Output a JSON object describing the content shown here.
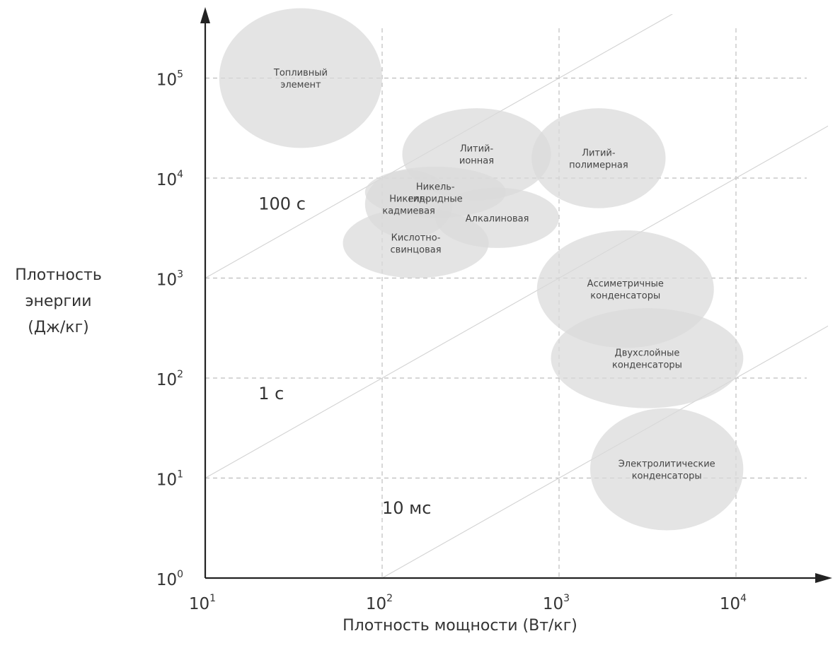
{
  "chart_data": {
    "type": "scatter",
    "title": "",
    "xlabel": "Плотность мощности (Вт/кг)",
    "ylabel_lines": [
      "Плотность",
      "энергии",
      "(Дж/кг)"
    ],
    "x_scale": "log",
    "y_scale": "log",
    "xlim": [
      10,
      100000
    ],
    "ylim": [
      1,
      1000000
    ],
    "x_ticks": [
      {
        "value": 10,
        "base": "10",
        "exp": "1"
      },
      {
        "value": 100,
        "base": "10",
        "exp": "2"
      },
      {
        "value": 1000,
        "base": "10",
        "exp": "3"
      },
      {
        "value": 10000,
        "base": "10",
        "exp": "4"
      }
    ],
    "y_ticks": [
      {
        "value": 1,
        "base": "10",
        "exp": "0"
      },
      {
        "value": 10,
        "base": "10",
        "exp": "1"
      },
      {
        "value": 100,
        "base": "10",
        "exp": "2"
      },
      {
        "value": 1000,
        "base": "10",
        "exp": "3"
      },
      {
        "value": 10000,
        "base": "10",
        "exp": "4"
      },
      {
        "value": 100000,
        "base": "10",
        "exp": "5"
      }
    ],
    "grid": true,
    "regions": [
      {
        "name": "fuel-cell",
        "label_lines": [
          "Топливный",
          "элемент"
        ],
        "x_range": [
          12,
          100
        ],
        "y_range": [
          20000,
          500000
        ]
      },
      {
        "name": "lithium-ion",
        "label_lines": [
          "Литий-",
          "ионная"
        ],
        "x_range": [
          130,
          900
        ],
        "y_range": [
          6000,
          50000
        ]
      },
      {
        "name": "lithium-polymer",
        "label_lines": [
          "Литий-",
          "полимерная"
        ],
        "x_range": [
          700,
          4000
        ],
        "y_range": [
          5000,
          50000
        ]
      },
      {
        "name": "nickel-metal-hydride",
        "label_lines": [
          "Никель-",
          "гидридные"
        ],
        "x_range": [
          80,
          500
        ],
        "y_range": [
          4000,
          13000
        ]
      },
      {
        "name": "nickel-cadmium",
        "label_lines": [
          "Никель-",
          "кадмиевая"
        ],
        "x_range": [
          80,
          250
        ],
        "y_range": [
          2500,
          12000
        ]
      },
      {
        "name": "alkaline",
        "label_lines": [
          "Алкалиновая"
        ],
        "x_range": [
          200,
          1000
        ],
        "y_range": [
          2000,
          8000
        ]
      },
      {
        "name": "lead-acid",
        "label_lines": [
          "Кислотно-",
          "свинцовая"
        ],
        "x_range": [
          60,
          400
        ],
        "y_range": [
          1000,
          5000
        ]
      },
      {
        "name": "asymmetric-capacitors",
        "label_lines": [
          "Ассиметричные",
          "конденсаторы"
        ],
        "x_range": [
          750,
          7500
        ],
        "y_range": [
          200,
          3000
        ]
      },
      {
        "name": "double-layer-capacitors",
        "label_lines": [
          "Двухслойные",
          "конденсаторы"
        ],
        "x_range": [
          900,
          11000
        ],
        "y_range": [
          50,
          500
        ]
      },
      {
        "name": "electrolytic-capacitors",
        "label_lines": [
          "Электролитические",
          "конденсаторы"
        ],
        "x_range": [
          1500,
          11000
        ],
        "y_range": [
          3,
          50
        ]
      }
    ],
    "time_lines": [
      {
        "name": "100-s",
        "label": "100 с",
        "seconds": 100,
        "label_at": [
          20,
          5500
        ]
      },
      {
        "name": "1-s",
        "label": "1 с",
        "seconds": 1,
        "label_at": [
          20,
          70
        ]
      },
      {
        "name": "10-ms",
        "label": "10 мс",
        "seconds": 0.01,
        "label_at": [
          100,
          5
        ]
      }
    ]
  }
}
